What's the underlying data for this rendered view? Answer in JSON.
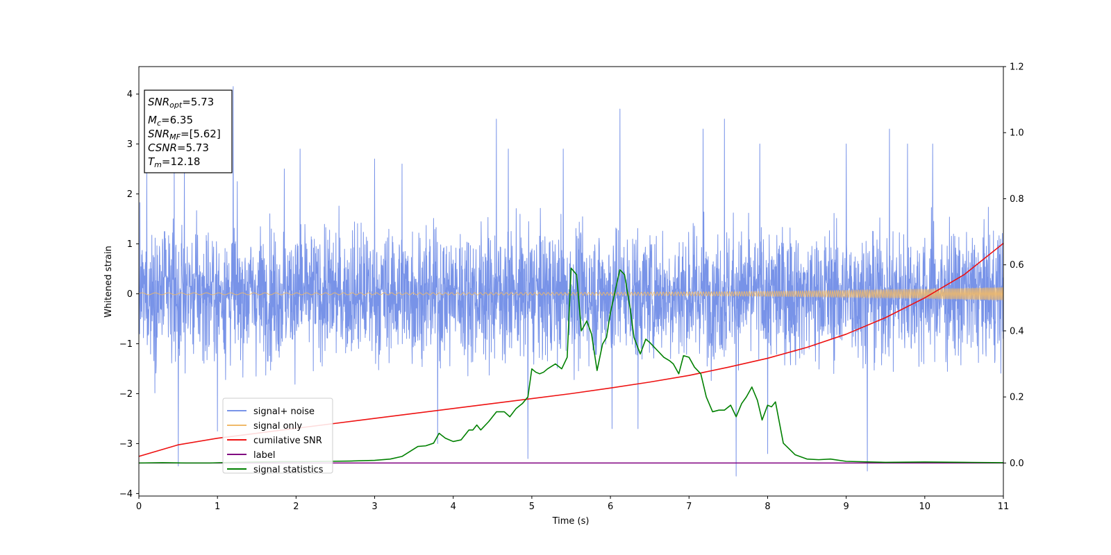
{
  "chart_data": {
    "type": "line",
    "xlabel": "Time (s)",
    "ylabel": "Whitened strain",
    "xlim": [
      0,
      11
    ],
    "ylim": [
      -4.05,
      4.55
    ],
    "y2lim": [
      -0.1,
      1.2
    ],
    "x_ticks": [
      "0",
      "1",
      "2",
      "3",
      "4",
      "5",
      "6",
      "7",
      "8",
      "9",
      "10",
      "11"
    ],
    "y_ticks": [
      "−4",
      "−3",
      "−2",
      "−1",
      "0",
      "1",
      "2",
      "3",
      "4"
    ],
    "y2_ticks": [
      "0.0",
      "0.2",
      "0.4",
      "0.6",
      "0.8",
      "1.0",
      "1.2"
    ],
    "grid": false,
    "legend_position": "lower-left",
    "annotation": {
      "snr_opt": {
        "sym": "SNR",
        "sub": "opt",
        "val": "=5.73"
      },
      "mc": {
        "sym": "M",
        "sub": "c",
        "val": "=6.35"
      },
      "snr_mf": {
        "sym": "SNR",
        "sub": "MF",
        "val": "=[5.62]"
      },
      "csnr": {
        "sym": "CSNR",
        "val": "=5.73"
      },
      "tm": {
        "sym": "T",
        "sub": "m",
        "val": "=12.18"
      }
    },
    "series": [
      {
        "name": "signal+ noise",
        "color": "#7893e8",
        "axis": "left",
        "kind": "noise",
        "band_sd": 0.95,
        "spikes": [
          [
            0.1,
            2.5
          ],
          [
            0.45,
            2.6
          ],
          [
            0.5,
            -3.45
          ],
          [
            0.58,
            2.6
          ],
          [
            1.0,
            -2.75
          ],
          [
            1.2,
            4.15
          ],
          [
            1.85,
            2.5
          ],
          [
            2.05,
            2.9
          ],
          [
            3.0,
            2.7
          ],
          [
            3.35,
            2.6
          ],
          [
            3.8,
            -3.0
          ],
          [
            4.55,
            3.5
          ],
          [
            4.7,
            2.9
          ],
          [
            4.95,
            -3.3
          ],
          [
            5.4,
            2.9
          ],
          [
            6.02,
            -2.7
          ],
          [
            6.12,
            3.7
          ],
          [
            6.35,
            -2.7
          ],
          [
            7.18,
            3.3
          ],
          [
            7.45,
            3.5
          ],
          [
            7.6,
            -3.65
          ],
          [
            7.9,
            3.0
          ],
          [
            8.0,
            -3.2
          ],
          [
            9.0,
            3.0
          ],
          [
            9.27,
            -3.55
          ],
          [
            9.55,
            3.3
          ],
          [
            9.78,
            3.0
          ],
          [
            10.1,
            3.0
          ]
        ]
      },
      {
        "name": "signal only",
        "color": "#f0b969",
        "axis": "left",
        "kind": "chirp",
        "amp_start": 0.02,
        "amp_end": 0.13
      },
      {
        "name": "cumilative SNR",
        "color": "#ee1111",
        "axis": "right",
        "kind": "line",
        "x": [
          0,
          0.5,
          1,
          1.5,
          2,
          2.5,
          3,
          3.5,
          4,
          4.5,
          5,
          5.5,
          6,
          6.5,
          7,
          7.5,
          8,
          8.5,
          9,
          9.5,
          10,
          10.5,
          11
        ],
        "y": [
          0.02,
          0.055,
          0.075,
          0.09,
          0.105,
          0.12,
          0.135,
          0.15,
          0.165,
          0.18,
          0.195,
          0.21,
          0.227,
          0.245,
          0.265,
          0.29,
          0.317,
          0.35,
          0.39,
          0.44,
          0.5,
          0.57,
          0.665
        ]
      },
      {
        "name": "label",
        "color": "#800080",
        "axis": "right",
        "kind": "line",
        "x": [
          0,
          11
        ],
        "y": [
          0.0,
          0.0
        ]
      },
      {
        "name": "signal statistics",
        "color": "#008000",
        "axis": "right",
        "kind": "line",
        "x": [
          0,
          0.3,
          0.6,
          0.9,
          1.2,
          1.5,
          1.8,
          2.1,
          2.4,
          2.7,
          3.0,
          3.2,
          3.35,
          3.45,
          3.55,
          3.65,
          3.75,
          3.82,
          3.9,
          4.0,
          4.1,
          4.2,
          4.25,
          4.3,
          4.35,
          4.45,
          4.5,
          4.55,
          4.65,
          4.72,
          4.8,
          4.88,
          4.95,
          5.0,
          5.05,
          5.1,
          5.15,
          5.2,
          5.3,
          5.38,
          5.45,
          5.5,
          5.57,
          5.63,
          5.7,
          5.76,
          5.83,
          5.9,
          5.95,
          6.0,
          6.06,
          6.12,
          6.18,
          6.25,
          6.3,
          6.38,
          6.45,
          6.5,
          6.6,
          6.68,
          6.75,
          6.8,
          6.87,
          6.93,
          7.0,
          7.07,
          7.15,
          7.22,
          7.3,
          7.38,
          7.45,
          7.53,
          7.6,
          7.67,
          7.73,
          7.8,
          7.87,
          7.93,
          8.0,
          8.05,
          8.1,
          8.2,
          8.35,
          8.5,
          8.65,
          8.8,
          9.0,
          9.5,
          10.0,
          10.5,
          11.0
        ],
        "y": [
          0.0,
          0.001,
          0.0,
          0.0,
          0.002,
          0.003,
          0.004,
          0.004,
          0.005,
          0.006,
          0.008,
          0.012,
          0.02,
          0.035,
          0.05,
          0.052,
          0.06,
          0.09,
          0.075,
          0.065,
          0.07,
          0.1,
          0.1,
          0.115,
          0.1,
          0.125,
          0.14,
          0.155,
          0.155,
          0.14,
          0.165,
          0.18,
          0.2,
          0.285,
          0.275,
          0.27,
          0.275,
          0.285,
          0.3,
          0.285,
          0.32,
          0.59,
          0.57,
          0.4,
          0.43,
          0.39,
          0.28,
          0.36,
          0.38,
          0.455,
          0.52,
          0.585,
          0.57,
          0.47,
          0.38,
          0.33,
          0.375,
          0.365,
          0.34,
          0.32,
          0.31,
          0.3,
          0.27,
          0.325,
          0.32,
          0.29,
          0.27,
          0.2,
          0.155,
          0.16,
          0.16,
          0.175,
          0.14,
          0.18,
          0.2,
          0.23,
          0.19,
          0.13,
          0.175,
          0.17,
          0.185,
          0.06,
          0.025,
          0.012,
          0.01,
          0.012,
          0.005,
          0.002,
          0.003,
          0.002,
          0.001
        ]
      }
    ]
  }
}
